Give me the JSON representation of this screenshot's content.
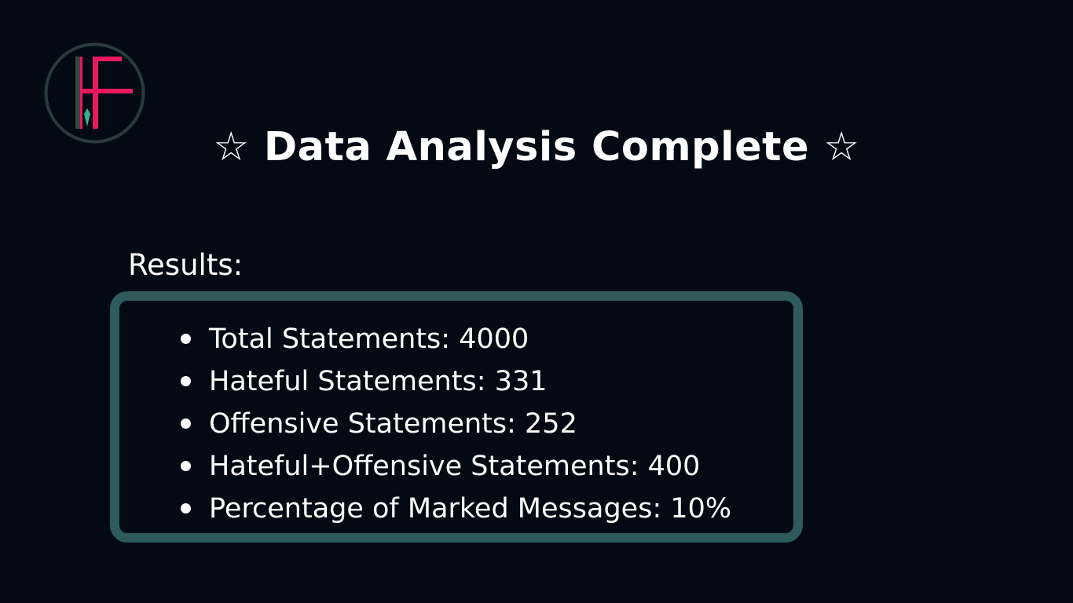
{
  "logo": {
    "icon": "hf-monogram-logo",
    "colors": {
      "ring": "#2b3b3d",
      "accent": "#e8185f",
      "dark_bar": "#3d4446",
      "gem": "#2fb78f"
    }
  },
  "title": {
    "star_left": "☆",
    "text": "Data Analysis Complete",
    "star_right": "☆"
  },
  "results": {
    "label": "Results:",
    "border_color": "#2e5a5c",
    "items": [
      {
        "text": "Total Statements: 4000"
      },
      {
        "text": "Hateful Statements: 331"
      },
      {
        "text": "Offensive Statements: 252"
      },
      {
        "text": "Hateful+Offensive Statements: 400"
      },
      {
        "text": "Percentage of Marked Messages: 10%"
      }
    ]
  }
}
